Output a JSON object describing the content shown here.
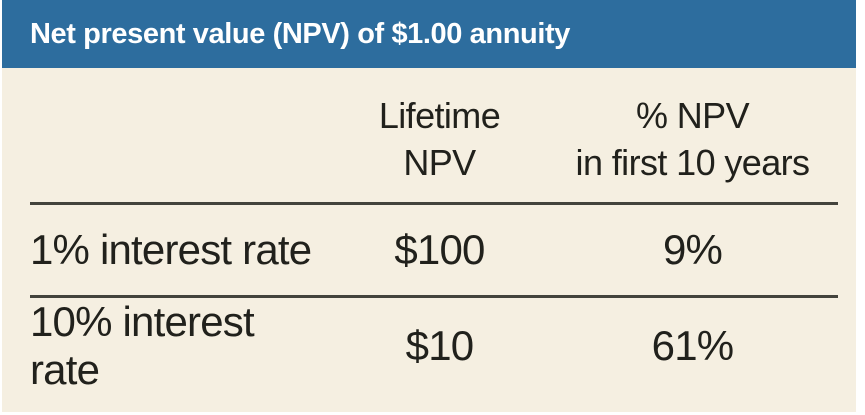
{
  "header": {
    "title": "Net present value (NPV) of $1.00 annuity"
  },
  "table": {
    "col2": {
      "line1": "Lifetime",
      "line2": "NPV"
    },
    "col3": {
      "line1": "% NPV",
      "line2": "in first 10 years"
    },
    "rows": [
      {
        "label": "1% interest rate",
        "lifetime_npv": "$100",
        "pct_first_10": "9%"
      },
      {
        "label": "10% interest rate",
        "lifetime_npv": "$10",
        "pct_first_10": "61%"
      }
    ]
  },
  "colors": {
    "title_bar_blue": "#2d6d9e",
    "card_cream": "#f5efe1",
    "rule_dark": "#43433c",
    "text_dark": "#21211c",
    "title_text": "#ffffff"
  },
  "chart_data": {
    "type": "table",
    "title": "Net present value (NPV) of $1.00 annuity",
    "columns": [
      "",
      "Lifetime NPV",
      "% NPV in first 10 years"
    ],
    "rows": [
      [
        "1% interest rate",
        "$100",
        "9%"
      ],
      [
        "10% interest rate",
        "$10",
        "61%"
      ]
    ]
  }
}
